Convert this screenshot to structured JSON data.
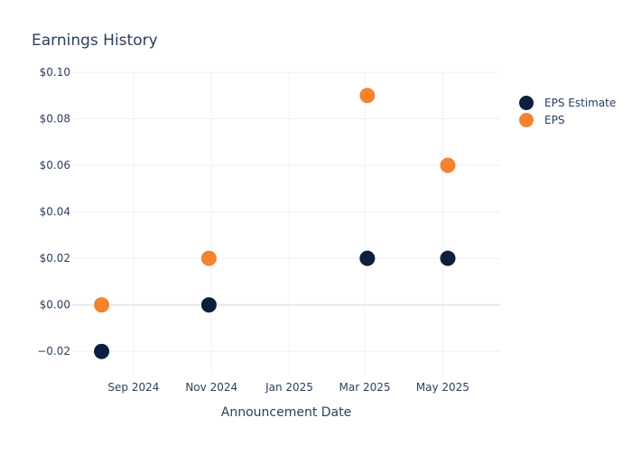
{
  "chart_data": {
    "type": "scatter",
    "title": "Earnings History",
    "xlabel": "Announcement Date",
    "ylabel": "",
    "ylim": [
      -0.03,
      0.1
    ],
    "xlim": [
      "2024-07-15",
      "2025-06-15"
    ],
    "x_ticks": [
      {
        "date": "2024-09-01",
        "label": "Sep 2024"
      },
      {
        "date": "2024-11-01",
        "label": "Nov 2024"
      },
      {
        "date": "2025-01-01",
        "label": "Jan 2025"
      },
      {
        "date": "2025-03-01",
        "label": "Mar 2025"
      },
      {
        "date": "2025-05-01",
        "label": "May 2025"
      }
    ],
    "y_ticks": [
      {
        "value": 0.1,
        "label": "$0.10"
      },
      {
        "value": 0.08,
        "label": "$0.08"
      },
      {
        "value": 0.06,
        "label": "$0.06"
      },
      {
        "value": 0.04,
        "label": "$0.04"
      },
      {
        "value": 0.02,
        "label": "$0.02"
      },
      {
        "value": 0.0,
        "label": "$0.00"
      },
      {
        "value": -0.02,
        "label": "−0.02"
      }
    ],
    "grid": true,
    "legend_position": "top-right",
    "x": [
      "2024-08-07",
      "2024-10-30",
      "2025-03-03",
      "2025-05-05"
    ],
    "series": [
      {
        "name": "EPS Estimate",
        "color": "#0d1f3c",
        "values": [
          -0.02,
          0.0,
          0.02,
          0.02
        ]
      },
      {
        "name": "EPS",
        "color": "#f58231",
        "values": [
          0.0,
          0.02,
          0.09,
          0.06
        ]
      }
    ]
  },
  "colors": {
    "text": "#2a3f5f",
    "grid": "#ebf0f8",
    "zeroline": "#e3e8f5",
    "background": "#ffffff"
  }
}
